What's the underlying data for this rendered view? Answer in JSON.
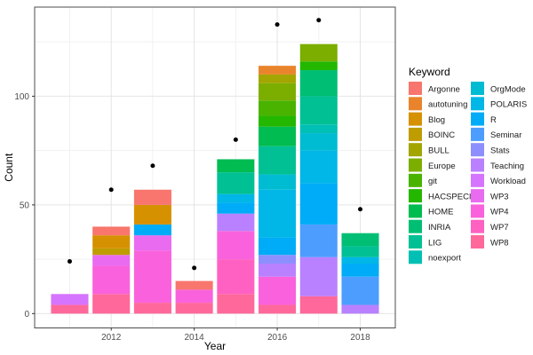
{
  "chart_data": {
    "type": "bar",
    "stacked": true,
    "title": "",
    "xlabel": "Year",
    "ylabel": "Count",
    "legend_title": "Keyword",
    "legend_position": "right",
    "grid": true,
    "x_ticks": [
      2012,
      2014,
      2016,
      2018
    ],
    "x_minor": [
      2011,
      2013,
      2015,
      2017
    ],
    "y_ticks": [
      0,
      50,
      100
    ],
    "y_minor": [
      25,
      75,
      125
    ],
    "xlim": [
      2010.155,
      2018.845
    ],
    "ylim": [
      -6.6,
      141
    ],
    "bar_width_years": 0.9,
    "keywords": [
      {
        "name": "Argonne",
        "color": "#F8766D"
      },
      {
        "name": "autotuning",
        "color": "#E9842C"
      },
      {
        "name": "Blog",
        "color": "#D69100"
      },
      {
        "name": "BOINC",
        "color": "#BF9C00"
      },
      {
        "name": "BULL",
        "color": "#A3A500"
      },
      {
        "name": "Europe",
        "color": "#7CAE00"
      },
      {
        "name": "git",
        "color": "#49B300"
      },
      {
        "name": "HACSPECIS",
        "color": "#24B700"
      },
      {
        "name": "HOME",
        "color": "#00BC51"
      },
      {
        "name": "INRIA",
        "color": "#00BF74"
      },
      {
        "name": "LIG",
        "color": "#00C094"
      },
      {
        "name": "noexport",
        "color": "#00BFB4"
      },
      {
        "name": "OrgMode",
        "color": "#00BCD3"
      },
      {
        "name": "POLARIS",
        "color": "#00B7E7"
      },
      {
        "name": "R",
        "color": "#00ACF7"
      },
      {
        "name": "Seminar",
        "color": "#4D9DFF"
      },
      {
        "name": "Stats",
        "color": "#8D8FFF"
      },
      {
        "name": "Teaching",
        "color": "#B981FF"
      },
      {
        "name": "Workload",
        "color": "#D574FE"
      },
      {
        "name": "WP3",
        "color": "#E96BF0"
      },
      {
        "name": "WP4",
        "color": "#F962DC"
      },
      {
        "name": "WP7",
        "color": "#FF61C2"
      },
      {
        "name": "WP8",
        "color": "#FF689B"
      }
    ],
    "bars": [
      {
        "year": 2011,
        "total": 9,
        "segments": [
          {
            "k": "WP8",
            "v": 4
          },
          {
            "k": "Workload",
            "v": 5
          }
        ]
      },
      {
        "year": 2012,
        "total": 40,
        "segments": [
          {
            "k": "WP8",
            "v": 9
          },
          {
            "k": "WP4",
            "v": 13
          },
          {
            "k": "WP3",
            "v": 5
          },
          {
            "k": "BOINC",
            "v": 3
          },
          {
            "k": "Blog",
            "v": 6
          },
          {
            "k": "Argonne",
            "v": 4
          }
        ]
      },
      {
        "year": 2013,
        "total": 57,
        "segments": [
          {
            "k": "WP8",
            "v": 5
          },
          {
            "k": "WP4",
            "v": 24
          },
          {
            "k": "WP3",
            "v": 7
          },
          {
            "k": "R",
            "v": 5
          },
          {
            "k": "Blog",
            "v": 9
          },
          {
            "k": "Argonne",
            "v": 7
          }
        ]
      },
      {
        "year": 2014,
        "total": 15,
        "segments": [
          {
            "k": "WP8",
            "v": 5
          },
          {
            "k": "WP4",
            "v": 6
          },
          {
            "k": "Argonne",
            "v": 4
          }
        ]
      },
      {
        "year": 2015,
        "total": 71,
        "segments": [
          {
            "k": "WP8",
            "v": 9
          },
          {
            "k": "WP7",
            "v": 16
          },
          {
            "k": "WP4",
            "v": 13
          },
          {
            "k": "Teaching",
            "v": 8
          },
          {
            "k": "R",
            "v": 5
          },
          {
            "k": "POLARIS",
            "v": 4
          },
          {
            "k": "LIG",
            "v": 10
          },
          {
            "k": "HOME",
            "v": 6
          }
        ]
      },
      {
        "year": 2016,
        "total": 114,
        "segments": [
          {
            "k": "WP8",
            "v": 4
          },
          {
            "k": "WP4",
            "v": 13
          },
          {
            "k": "Teaching",
            "v": 6
          },
          {
            "k": "Stats",
            "v": 4
          },
          {
            "k": "R",
            "v": 8
          },
          {
            "k": "POLARIS",
            "v": 22
          },
          {
            "k": "OrgMode",
            "v": 7
          },
          {
            "k": "LIG",
            "v": 13
          },
          {
            "k": "HOME",
            "v": 9
          },
          {
            "k": "HACSPECIS",
            "v": 5
          },
          {
            "k": "git",
            "v": 7
          },
          {
            "k": "Europe",
            "v": 8
          },
          {
            "k": "BULL",
            "v": 4
          },
          {
            "k": "autotuning",
            "v": 4
          }
        ]
      },
      {
        "year": 2017,
        "total": 124,
        "segments": [
          {
            "k": "WP8",
            "v": 8
          },
          {
            "k": "Teaching",
            "v": 18
          },
          {
            "k": "Seminar",
            "v": 15
          },
          {
            "k": "R",
            "v": 19
          },
          {
            "k": "POLARIS",
            "v": 15
          },
          {
            "k": "OrgMode",
            "v": 8
          },
          {
            "k": "noexport",
            "v": 4
          },
          {
            "k": "LIG",
            "v": 13
          },
          {
            "k": "INRIA",
            "v": 12
          },
          {
            "k": "HACSPECIS",
            "v": 4
          },
          {
            "k": "Europe",
            "v": 8
          }
        ]
      },
      {
        "year": 2018,
        "total": 37,
        "segments": [
          {
            "k": "Teaching",
            "v": 4
          },
          {
            "k": "Seminar",
            "v": 13
          },
          {
            "k": "R",
            "v": 6
          },
          {
            "k": "POLARIS",
            "v": 3
          },
          {
            "k": "LIG",
            "v": 5
          },
          {
            "k": "INRIA",
            "v": 6
          }
        ]
      }
    ],
    "points": [
      {
        "year": 2011,
        "value": 24
      },
      {
        "year": 2012,
        "value": 57
      },
      {
        "year": 2013,
        "value": 68
      },
      {
        "year": 2014,
        "value": 21
      },
      {
        "year": 2015,
        "value": 80
      },
      {
        "year": 2016,
        "value": 133
      },
      {
        "year": 2017,
        "value": 135
      },
      {
        "year": 2018,
        "value": 48
      }
    ]
  },
  "legend": {
    "title": "Keyword",
    "columns": [
      [
        "Argonne",
        "autotuning",
        "Blog",
        "BOINC",
        "BULL",
        "Europe",
        "git",
        "HACSPECIS",
        "HOME",
        "INRIA",
        "LIG",
        "noexport"
      ],
      [
        "OrgMode",
        "POLARIS",
        "R",
        "Seminar",
        "Stats",
        "Teaching",
        "Workload",
        "WP3",
        "WP4",
        "WP7",
        "WP8"
      ]
    ]
  }
}
